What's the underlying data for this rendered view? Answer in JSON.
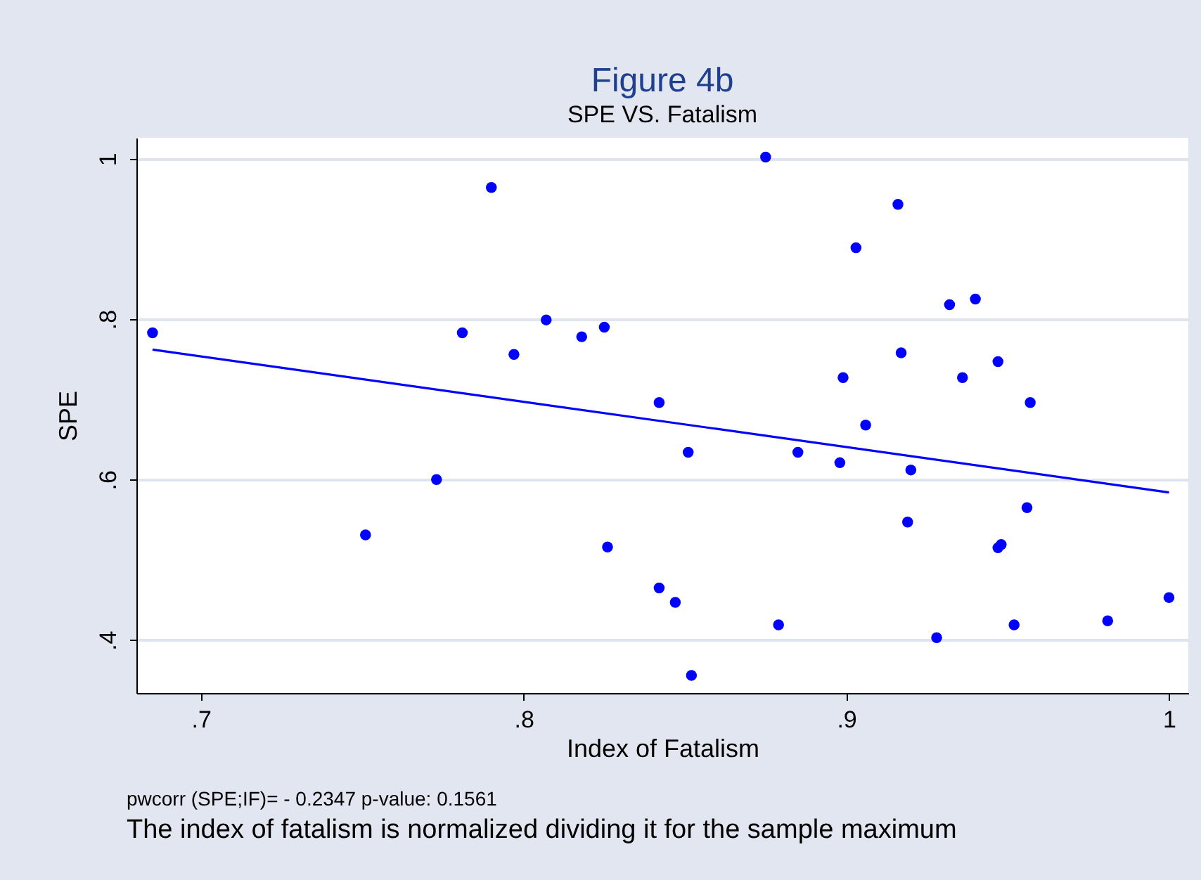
{
  "chart_data": {
    "type": "scatter",
    "title": "Figure 4b",
    "subtitle": "SPE VS. Fatalism",
    "xlabel": "Index of Fatalism",
    "ylabel": "SPE",
    "annotations": [
      "pwcorr (SPE;IF)= - 0.2347  p-value: 0.1561",
      "The index of fatalism is normalized dividing it for the sample maximum"
    ],
    "series": [
      {
        "marker": "circle",
        "color": "#0000ff",
        "x": [
          0.685,
          0.79,
          0.781,
          0.807,
          0.797,
          0.818,
          0.825,
          0.773,
          0.751,
          0.826,
          0.842,
          0.851,
          0.842,
          0.847,
          0.852,
          0.875,
          0.879,
          0.885,
          0.898,
          0.899,
          0.903,
          0.906,
          0.916,
          0.917,
          0.919,
          0.92,
          0.928,
          0.932,
          0.936,
          0.94,
          0.947,
          0.947,
          0.948,
          0.952,
          0.956,
          0.957,
          0.981,
          1.0
        ],
        "values": [
          0.783,
          0.964,
          0.783,
          0.799,
          0.756,
          0.778,
          0.79,
          0.6,
          0.531,
          0.516,
          0.696,
          0.634,
          0.465,
          0.447,
          0.356,
          1.002,
          0.419,
          0.634,
          0.621,
          0.727,
          0.889,
          0.668,
          0.943,
          0.758,
          0.547,
          0.612,
          0.403,
          0.818,
          0.727,
          0.825,
          0.747,
          0.515,
          0.519,
          0.419,
          0.565,
          0.696,
          0.424,
          0.453
        ]
      },
      {
        "type": "line",
        "marker": "none",
        "color": "#0000ff",
        "x": [
          0.685,
          1.0
        ],
        "values": [
          0.762,
          0.584
        ]
      }
    ],
    "xlim": [
      0.68,
      1.006
    ],
    "ylim": [
      0.334,
      1.026
    ],
    "xticks": [
      {
        "value": 0.7,
        "label": ".7"
      },
      {
        "value": 0.8,
        "label": ".8"
      },
      {
        "value": 0.9,
        "label": ".9"
      },
      1
    ],
    "yticks": [
      {
        "value": 0.4,
        "label": ".4"
      },
      {
        "value": 0.6,
        "label": ".6"
      },
      {
        "value": 0.8,
        "label": ".8"
      },
      1
    ],
    "grid": "y"
  }
}
